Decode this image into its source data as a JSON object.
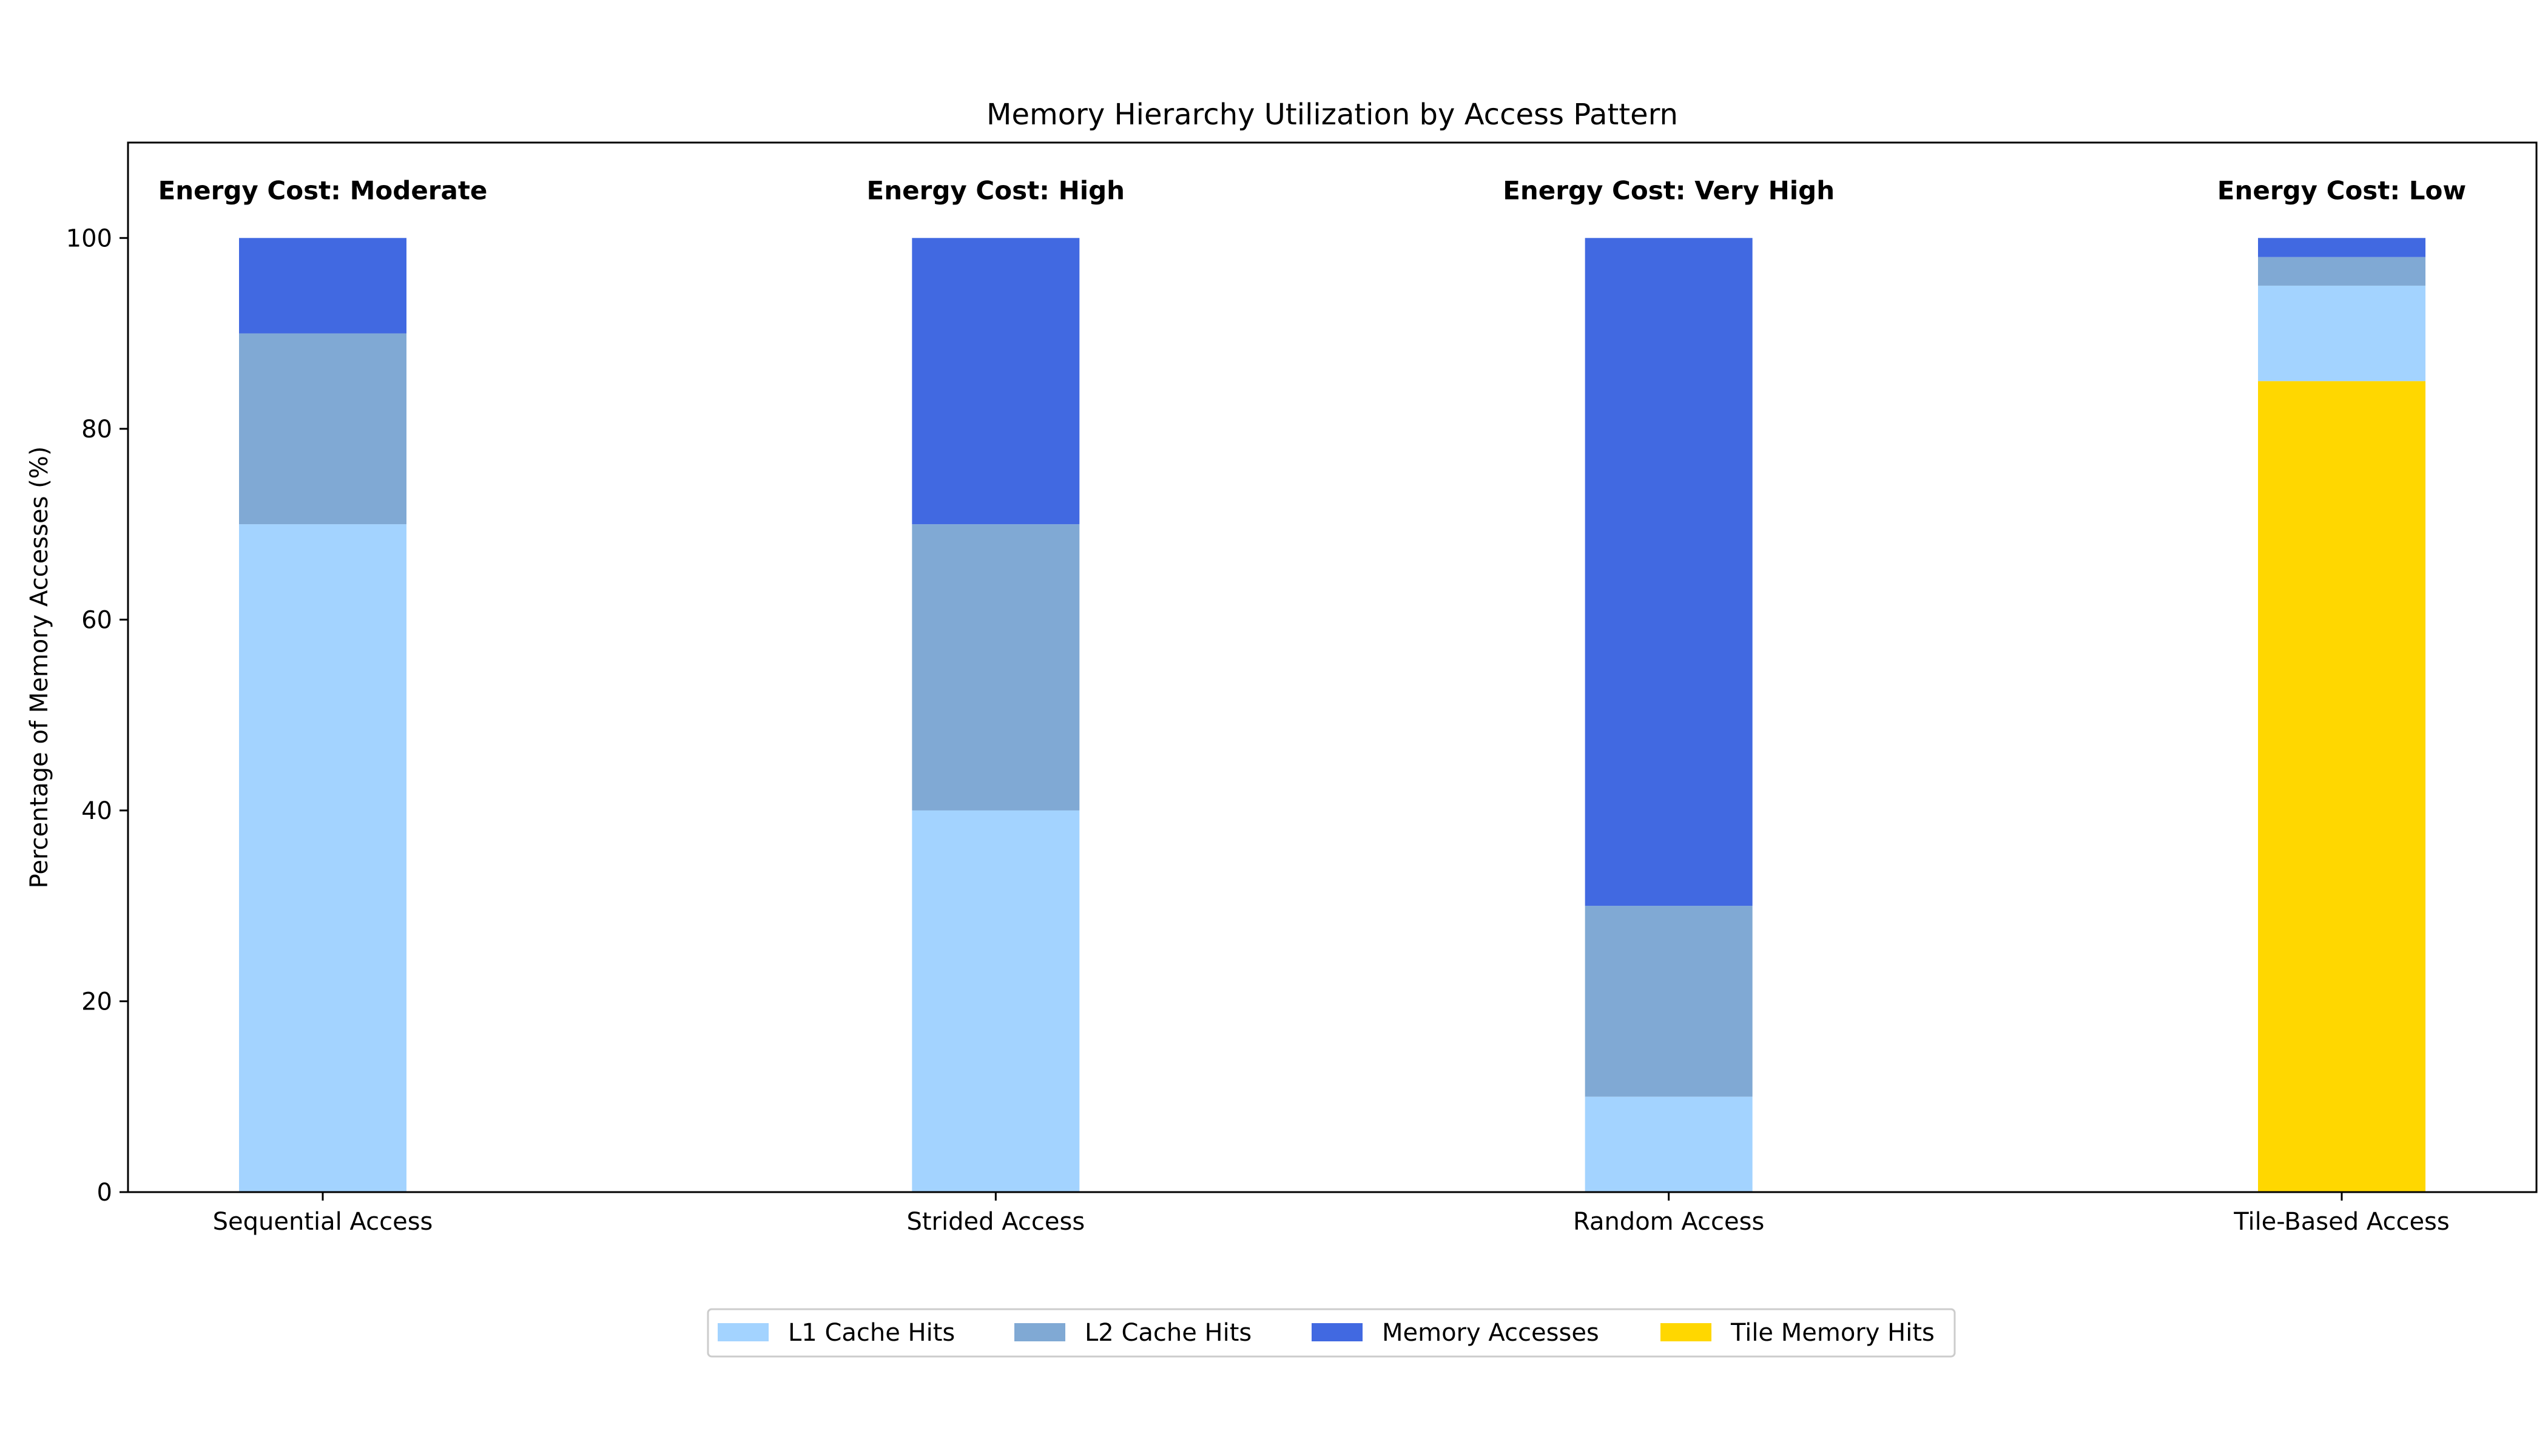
{
  "chart_data": {
    "type": "bar",
    "stacked": true,
    "title": "Memory Hierarchy Utilization by Access Pattern",
    "xlabel": "",
    "ylabel": "Percentage of Memory Accesses (%)",
    "ylim": [
      0,
      110
    ],
    "yticks": [
      0,
      20,
      40,
      60,
      80,
      100
    ],
    "grid": false,
    "legend_position": "bottom-center",
    "categories": [
      "Sequential Access",
      "Strided Access",
      "Random Access",
      "Tile-Based Access"
    ],
    "annotations": [
      "Energy Cost: Moderate",
      "Energy Cost: High",
      "Energy Cost: Very High",
      "Energy Cost: Low"
    ],
    "series": [
      {
        "name": "Tile Memory Hits",
        "color": "#FFD700",
        "values": [
          0,
          0,
          0,
          85
        ]
      },
      {
        "name": "L1 Cache Hits",
        "color": "#A3D3FF",
        "values": [
          70,
          40,
          10,
          10
        ]
      },
      {
        "name": "L2 Cache Hits",
        "color": "#80A9D4",
        "values": [
          20,
          30,
          20,
          3
        ]
      },
      {
        "name": "Memory Accesses",
        "color": "#4169E1",
        "values": [
          10,
          30,
          70,
          2
        ]
      }
    ],
    "legend_order": [
      "L1 Cache Hits",
      "L2 Cache Hits",
      "Memory Accesses",
      "Tile Memory Hits"
    ]
  }
}
